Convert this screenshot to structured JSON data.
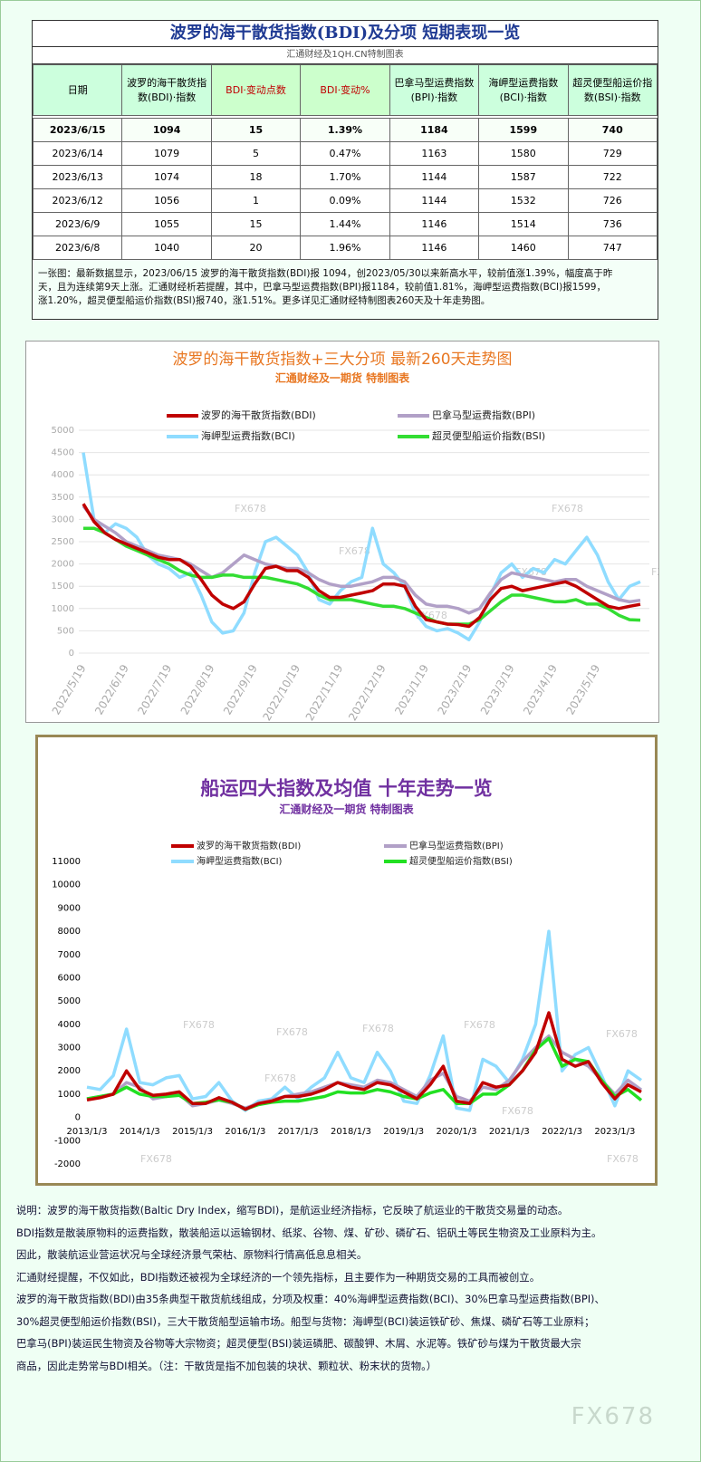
{
  "header": {
    "title": "波罗的海干散货指数(BDI)及分项  短期表现一览",
    "subtitle": "汇通财经及1QH.CN特制图表"
  },
  "table": {
    "columns": [
      "日期",
      "波罗的海干散货指数(BDI)·指数",
      "BDI·变动点数",
      "BDI·变动%",
      "巴拿马型运费指数(BPI)·指数",
      "海岬型运费指数(BCI)·指数",
      "超灵便型船运价指数(BSI)·指数"
    ],
    "rows": [
      [
        "2023/6/15",
        "1094",
        "15",
        "1.39%",
        "1184",
        "1599",
        "740"
      ],
      [
        "2023/6/14",
        "1079",
        "5",
        "0.47%",
        "1163",
        "1580",
        "729"
      ],
      [
        "2023/6/13",
        "1074",
        "18",
        "1.70%",
        "1144",
        "1587",
        "722"
      ],
      [
        "2023/6/12",
        "1056",
        "1",
        "0.09%",
        "1144",
        "1532",
        "726"
      ],
      [
        "2023/6/9",
        "1055",
        "15",
        "1.44%",
        "1146",
        "1514",
        "736"
      ],
      [
        "2023/6/8",
        "1040",
        "20",
        "1.96%",
        "1146",
        "1460",
        "747"
      ]
    ]
  },
  "summary": [
    "一张图：最新数据显示，2023/06/15 波罗的海干散货指数(BDI)报 1094，创2023/05/30以来新高水平，较前值涨1.39%，幅度高于昨",
    "天，且为连续第9天上涨。汇通财经析若提醒，其中，巴拿马型运费指数(BPI)报1184，较前值1.81%，海岬型运费指数(BCI)报1599，",
    "涨1.20%，超灵便型船运价指数(BSI)报740，涨1.51%。更多详见汇通财经特制图表260天及十年走势图。"
  ],
  "watermark": "FX678",
  "chart_data": [
    {
      "type": "line",
      "title": "波罗的海干散货指数+三大分项  最新260天走势图",
      "subtitle": "汇通财经及一期货  特制图表",
      "categories": [
        "2022/5/19",
        null,
        null,
        null,
        "2022/6/19",
        null,
        null,
        null,
        "2022/7/19",
        null,
        null,
        null,
        "2022/8/19",
        null,
        null,
        null,
        "2022/9/19",
        null,
        null,
        null,
        "2022/10/19",
        null,
        null,
        null,
        "2022/11/19",
        null,
        null,
        null,
        "2022/12/19",
        null,
        null,
        null,
        "2023/1/19",
        null,
        null,
        null,
        "2023/2/19",
        null,
        null,
        null,
        "2023/3/19",
        null,
        null,
        null,
        "2023/4/19",
        null,
        null,
        null,
        "2023/5/19",
        null,
        null,
        null,
        null
      ],
      "ylim": [
        0,
        5000
      ],
      "yticks": [
        0,
        500,
        1000,
        1500,
        2000,
        2500,
        3000,
        3500,
        4000,
        4500,
        5000
      ],
      "grid": true,
      "series": [
        {
          "name": "波罗的海干散货指数(BDI)",
          "color": "#c00000",
          "values": [
            3350,
            2950,
            2700,
            2550,
            2450,
            2350,
            2250,
            2150,
            2100,
            2100,
            1950,
            1650,
            1300,
            1100,
            1000,
            1150,
            1550,
            1900,
            1950,
            1850,
            1850,
            1700,
            1400,
            1250,
            1250,
            1300,
            1350,
            1400,
            1550,
            1550,
            1500,
            1050,
            750,
            700,
            650,
            640,
            600,
            800,
            1200,
            1450,
            1500,
            1400,
            1450,
            1500,
            1550,
            1600,
            1500,
            1350,
            1200,
            1050,
            1000,
            1050,
            1094
          ]
        },
        {
          "name": "巴拿马型运费指数(BPI)",
          "color": "#b1a0c7",
          "values": [
            3300,
            3000,
            2850,
            2700,
            2500,
            2400,
            2300,
            2200,
            2150,
            2100,
            2000,
            1850,
            1700,
            1800,
            2000,
            2200,
            2100,
            2000,
            1950,
            1900,
            1900,
            1800,
            1650,
            1550,
            1500,
            1500,
            1550,
            1600,
            1700,
            1700,
            1600,
            1300,
            1100,
            1050,
            1050,
            1000,
            900,
            1000,
            1350,
            1650,
            1800,
            1750,
            1700,
            1650,
            1600,
            1650,
            1650,
            1500,
            1400,
            1300,
            1200,
            1150,
            1184
          ]
        },
        {
          "name": "海岬型运费指数(BCI)",
          "color": "#8fdcff",
          "values": [
            4500,
            3000,
            2700,
            2900,
            2800,
            2600,
            2200,
            2000,
            1900,
            1700,
            1800,
            1300,
            700,
            450,
            500,
            900,
            1800,
            2500,
            2600,
            2400,
            2200,
            1800,
            1200,
            1100,
            1400,
            1600,
            1700,
            2800,
            2000,
            1800,
            1500,
            900,
            600,
            500,
            550,
            450,
            300,
            700,
            1300,
            1800,
            2000,
            1700,
            1900,
            1800,
            2100,
            2000,
            2300,
            2600,
            2200,
            1600,
            1200,
            1500,
            1599
          ]
        },
        {
          "name": "超灵便型船运价指数(BSI)",
          "color": "#33dd33",
          "values": [
            2800,
            2800,
            2700,
            2550,
            2400,
            2300,
            2200,
            2100,
            2000,
            1850,
            1750,
            1700,
            1700,
            1750,
            1750,
            1700,
            1700,
            1700,
            1650,
            1600,
            1550,
            1450,
            1300,
            1200,
            1200,
            1200,
            1150,
            1100,
            1050,
            1050,
            1000,
            900,
            800,
            700,
            650,
            650,
            650,
            750,
            950,
            1150,
            1300,
            1300,
            1250,
            1200,
            1150,
            1150,
            1200,
            1100,
            1100,
            1000,
            850,
            750,
            740
          ]
        }
      ]
    },
    {
      "type": "line",
      "title": "船运四大指数及均值 十年走势一览",
      "subtitle": "汇通财经及一期货 特制图表",
      "categories": [
        "2013/1/3",
        null,
        null,
        null,
        "2014/1/3",
        null,
        null,
        null,
        "2015/1/3",
        null,
        null,
        null,
        "2016/1/3",
        null,
        null,
        null,
        "2017/1/3",
        null,
        null,
        null,
        "2018/1/3",
        null,
        null,
        null,
        "2019/1/3",
        null,
        null,
        null,
        "2020/1/3",
        null,
        null,
        null,
        "2021/1/3",
        null,
        null,
        null,
        "2022/1/3",
        null,
        null,
        null,
        "2023/1/3",
        null,
        null
      ],
      "ylim": [
        -2000,
        11000
      ],
      "yticks": [
        -2000,
        -1000,
        0,
        1000,
        2000,
        3000,
        4000,
        5000,
        6000,
        7000,
        8000,
        9000,
        10000,
        11000
      ],
      "grid": false,
      "series": [
        {
          "name": "波罗的海干散货指数(BDI)",
          "color": "#c00000",
          "values": [
            750,
            850,
            1000,
            2000,
            1200,
            950,
            1000,
            1100,
            600,
            600,
            850,
            650,
            350,
            600,
            700,
            900,
            900,
            1000,
            1200,
            1500,
            1300,
            1200,
            1500,
            1400,
            1100,
            800,
            1400,
            2200,
            700,
            600,
            1500,
            1300,
            1400,
            2000,
            2800,
            4500,
            2500,
            2200,
            2400,
            1500,
            800,
            1400,
            1094
          ]
        },
        {
          "name": "巴拿马型运费指数(BPI)",
          "color": "#b1a0c7",
          "values": [
            800,
            900,
            1000,
            1500,
            1300,
            800,
            900,
            1000,
            500,
            600,
            750,
            600,
            400,
            600,
            750,
            900,
            1000,
            1100,
            1300,
            1500,
            1400,
            1300,
            1600,
            1500,
            1200,
            900,
            1600,
            1900,
            900,
            700,
            1300,
            1200,
            1600,
            2400,
            3000,
            3500,
            2800,
            2500,
            2200,
            1600,
            1000,
            1600,
            1184
          ]
        },
        {
          "name": "海岬型运费指数(BCI)",
          "color": "#8fdcff",
          "values": [
            1300,
            1200,
            1800,
            3800,
            1500,
            1400,
            1700,
            1800,
            800,
            900,
            1500,
            700,
            300,
            700,
            800,
            1300,
            800,
            1300,
            1700,
            2800,
            1700,
            1500,
            2800,
            2000,
            700,
            600,
            1800,
            3500,
            400,
            300,
            2500,
            2200,
            1500,
            2500,
            4000,
            8000,
            2000,
            2700,
            3000,
            1800,
            500,
            2000,
            1599
          ]
        },
        {
          "name": "超灵便型船运价指数(BSI)",
          "color": "#22e022",
          "values": [
            800,
            900,
            1000,
            1300,
            1000,
            900,
            900,
            950,
            600,
            650,
            750,
            650,
            350,
            550,
            650,
            700,
            700,
            800,
            900,
            1100,
            1050,
            1050,
            1200,
            1100,
            900,
            800,
            1050,
            1200,
            600,
            600,
            1000,
            1000,
            1400,
            2000,
            2900,
            3400,
            2200,
            2500,
            2400,
            1600,
            900,
            1200,
            740
          ]
        }
      ]
    }
  ],
  "notes": [
    "说明：波罗的海干散货指数(Baltic Dry Index，缩写BDI)，是航运业经济指标，它反映了航运业的干散货交易量的动态。",
    "BDI指数是散装原物料的运费指数，散装船运以运输钢材、纸浆、谷物、煤、矿砂、磷矿石、铝矾土等民生物资及工业原料为主。",
    "因此，散装航运业营运状况与全球经济景气荣枯、原物料行情高低息息相关。",
    "汇通财经提醒，不仅如此，BDI指数还被视为全球经济的一个领先指标，且主要作为一种期货交易的工具而被创立。",
    "波罗的海干散货指数(BDI)由35条典型干散货航线组成，分项及权重：40%海岬型运费指数(BCI)、30%巴拿马型运费指数(BPI)、",
    "30%超灵便型船运价指数(BSI)，三大干散货船型运输市场。船型与货物：海岬型(BCI)装运铁矿砂、焦煤、磷矿石等工业原料；",
    "巴拿马(BPI)装运民生物资及谷物等大宗物资；超灵便型(BSI)装运磷肥、碳酸钾、木屑、水泥等。铁矿砂与煤为干散货最大宗",
    "商品，因此走势常与BDI相关。（注：干散货是指不加包装的块状、颗粒状、粉末状的货物。）"
  ]
}
